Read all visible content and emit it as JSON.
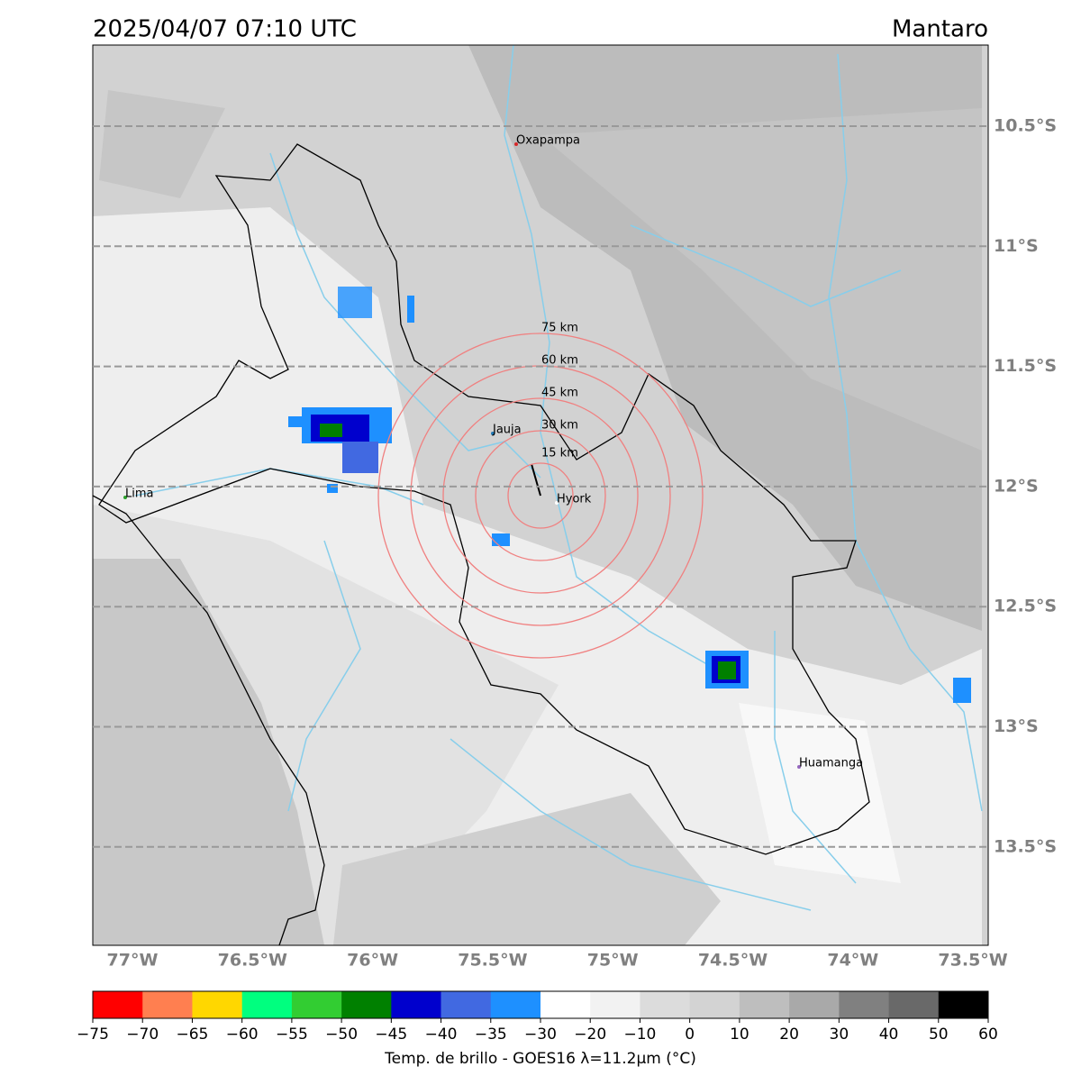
{
  "header": {
    "timestamp": "2025/04/07 07:10 UTC",
    "region": "Mantaro"
  },
  "map": {
    "lat_labels": [
      {
        "value": -10.5,
        "label": "10.5°S"
      },
      {
        "value": -11,
        "label": "11°S"
      },
      {
        "value": -11.5,
        "label": "11.5°S"
      },
      {
        "value": -12,
        "label": "12°S"
      },
      {
        "value": -12.5,
        "label": "12.5°S"
      },
      {
        "value": -13,
        "label": "13°S"
      },
      {
        "value": -13.5,
        "label": "13.5°S"
      }
    ],
    "lon_labels": [
      {
        "value": -77,
        "label": "77°W"
      },
      {
        "value": -76.5,
        "label": "76.5°W"
      },
      {
        "value": -76,
        "label": "76°W"
      },
      {
        "value": -75.5,
        "label": "75.5°W"
      },
      {
        "value": -75,
        "label": "75°W"
      },
      {
        "value": -74.5,
        "label": "74.5°W"
      },
      {
        "value": -74,
        "label": "74°W"
      },
      {
        "value": -73.5,
        "label": "73.5°W"
      }
    ],
    "cities": [
      "Oxapampa",
      "Jauja",
      "Lima",
      "Hyork",
      "Huamanga"
    ],
    "rings": [
      "15 km",
      "30 km",
      "45 km",
      "60 km",
      "75 km"
    ]
  },
  "colorbar": {
    "ticks": [
      {
        "value": -75,
        "label": "−75"
      },
      {
        "value": -70,
        "label": "−70"
      },
      {
        "value": -65,
        "label": "−65"
      },
      {
        "value": -60,
        "label": "−60"
      },
      {
        "value": -55,
        "label": "−55"
      },
      {
        "value": -50,
        "label": "−50"
      },
      {
        "value": -45,
        "label": "−45"
      },
      {
        "value": -40,
        "label": "−40"
      },
      {
        "value": -35,
        "label": "−35"
      },
      {
        "value": -30,
        "label": "−30"
      },
      {
        "value": -20,
        "label": "−20"
      },
      {
        "value": -10,
        "label": "−10"
      },
      0,
      10,
      20,
      30,
      40,
      50,
      60
    ],
    "colors": [
      "#ff0000",
      "#ff7f50",
      "#ffd700",
      "#00ff7f",
      "#32cd32",
      "#008000",
      "#0000cd",
      "#4169e1",
      "#1e90ff",
      "#ffffff",
      "#f2f2f2",
      "#dcdcdc",
      "#d3d3d3",
      "#bebebe",
      "#a9a9a9",
      "#808080",
      "#696969",
      "#000000"
    ],
    "label": "Temp. de brillo - GOES16 λ=11.2μm (°C)"
  }
}
